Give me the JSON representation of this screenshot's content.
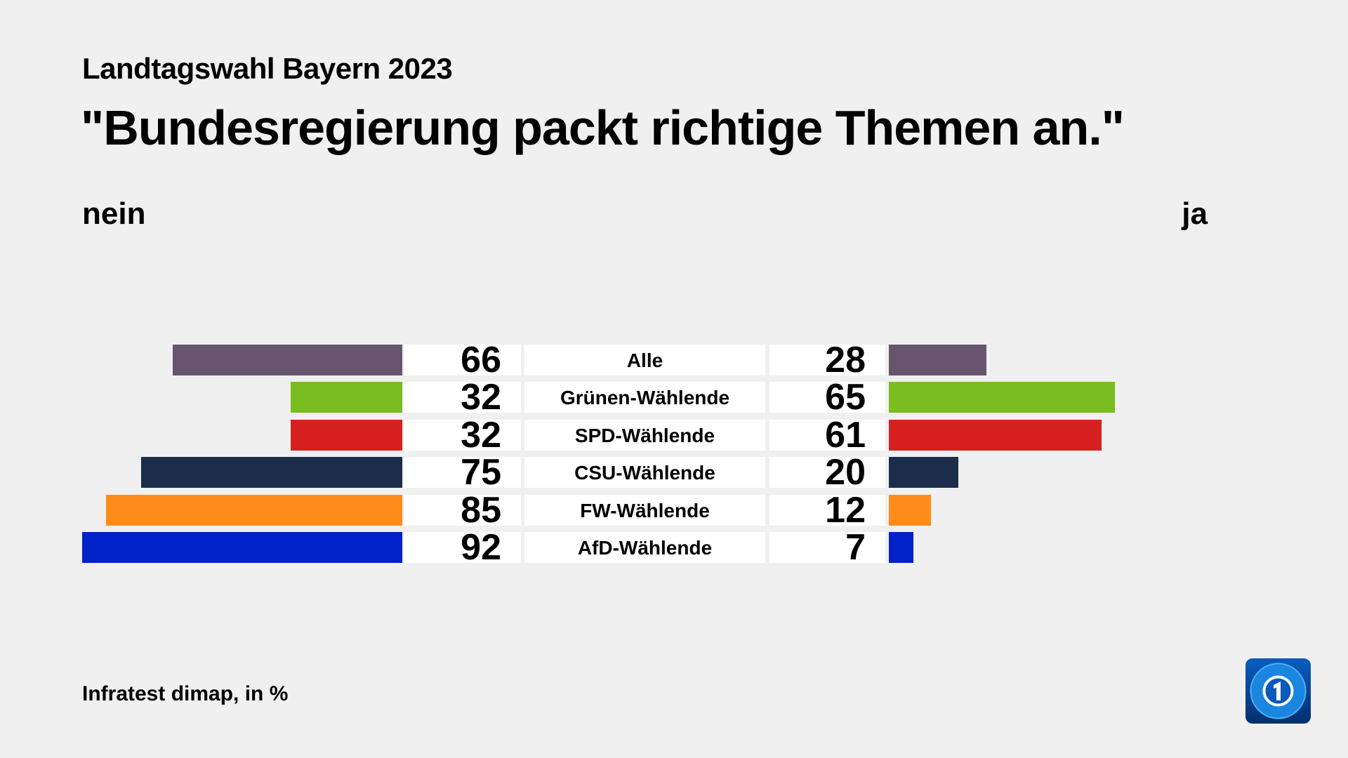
{
  "chart_data": {
    "type": "bar",
    "subtitle": "Landtagswahl Bayern 2023",
    "title": "\"Bundesregierung packt richtige Themen an.\"",
    "left_label": "nein",
    "right_label": "ja",
    "source": "Infratest dimap, in %",
    "categories": [
      "Alle",
      "Grünen-Wählende",
      "SPD-Wählende",
      "CSU-Wählende",
      "FW-Wählende",
      "AfD-Wählende"
    ],
    "colors": [
      "#67556f",
      "#7abd1e",
      "#d6201f",
      "#1b2d4a",
      "#ff8c1a",
      "#0020c8"
    ],
    "series": [
      {
        "name": "nein",
        "values": [
          66,
          32,
          32,
          75,
          85,
          92
        ]
      },
      {
        "name": "ja",
        "values": [
          28,
          65,
          61,
          20,
          12,
          7
        ]
      }
    ]
  },
  "logo": {
    "icon": "tagesschau-logo-icon"
  }
}
